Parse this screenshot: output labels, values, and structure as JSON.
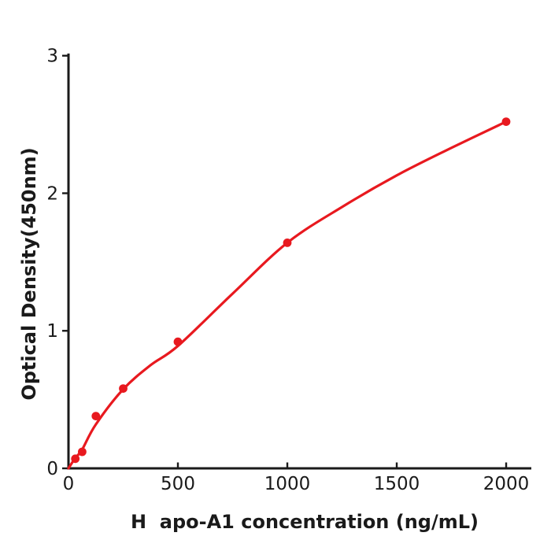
{
  "figure": {
    "background": "#ffffff",
    "axis_color": "#1a1a1a",
    "accent_color": "#e8191f"
  },
  "chart_data": {
    "type": "scatter",
    "title": "",
    "xlabel": "H  apo-A1 concentration (ng/mL)",
    "ylabel": "Optical Density(450nm)",
    "xlim": [
      0,
      2115
    ],
    "ylim": [
      0,
      3.01
    ],
    "x_ticks": [
      0,
      500,
      1000,
      1500,
      2000
    ],
    "y_ticks": [
      0,
      1,
      2,
      3
    ],
    "grid": false,
    "legend_position": "none",
    "series": [
      {
        "name": "fitted-curve",
        "type": "line",
        "color": "#e8191f",
        "stroke_width": 3.2,
        "points": [
          [
            0,
            0
          ],
          [
            31,
            0.075
          ],
          [
            62,
            0.135
          ],
          [
            125,
            0.32
          ],
          [
            250,
            0.575
          ],
          [
            375,
            0.75
          ],
          [
            500,
            0.89
          ],
          [
            750,
            1.27
          ],
          [
            1000,
            1.64
          ],
          [
            1250,
            1.9
          ],
          [
            1500,
            2.13
          ],
          [
            1750,
            2.33
          ],
          [
            2000,
            2.52
          ]
        ]
      },
      {
        "name": "standard-points",
        "type": "scatter",
        "color": "#e8191f",
        "marker_radius": 5.4,
        "points": [
          [
            31.25,
            0.07
          ],
          [
            62.5,
            0.12
          ],
          [
            125,
            0.38
          ],
          [
            250,
            0.58
          ],
          [
            500,
            0.92
          ],
          [
            1000,
            1.64
          ],
          [
            2000,
            2.52
          ]
        ]
      }
    ]
  }
}
